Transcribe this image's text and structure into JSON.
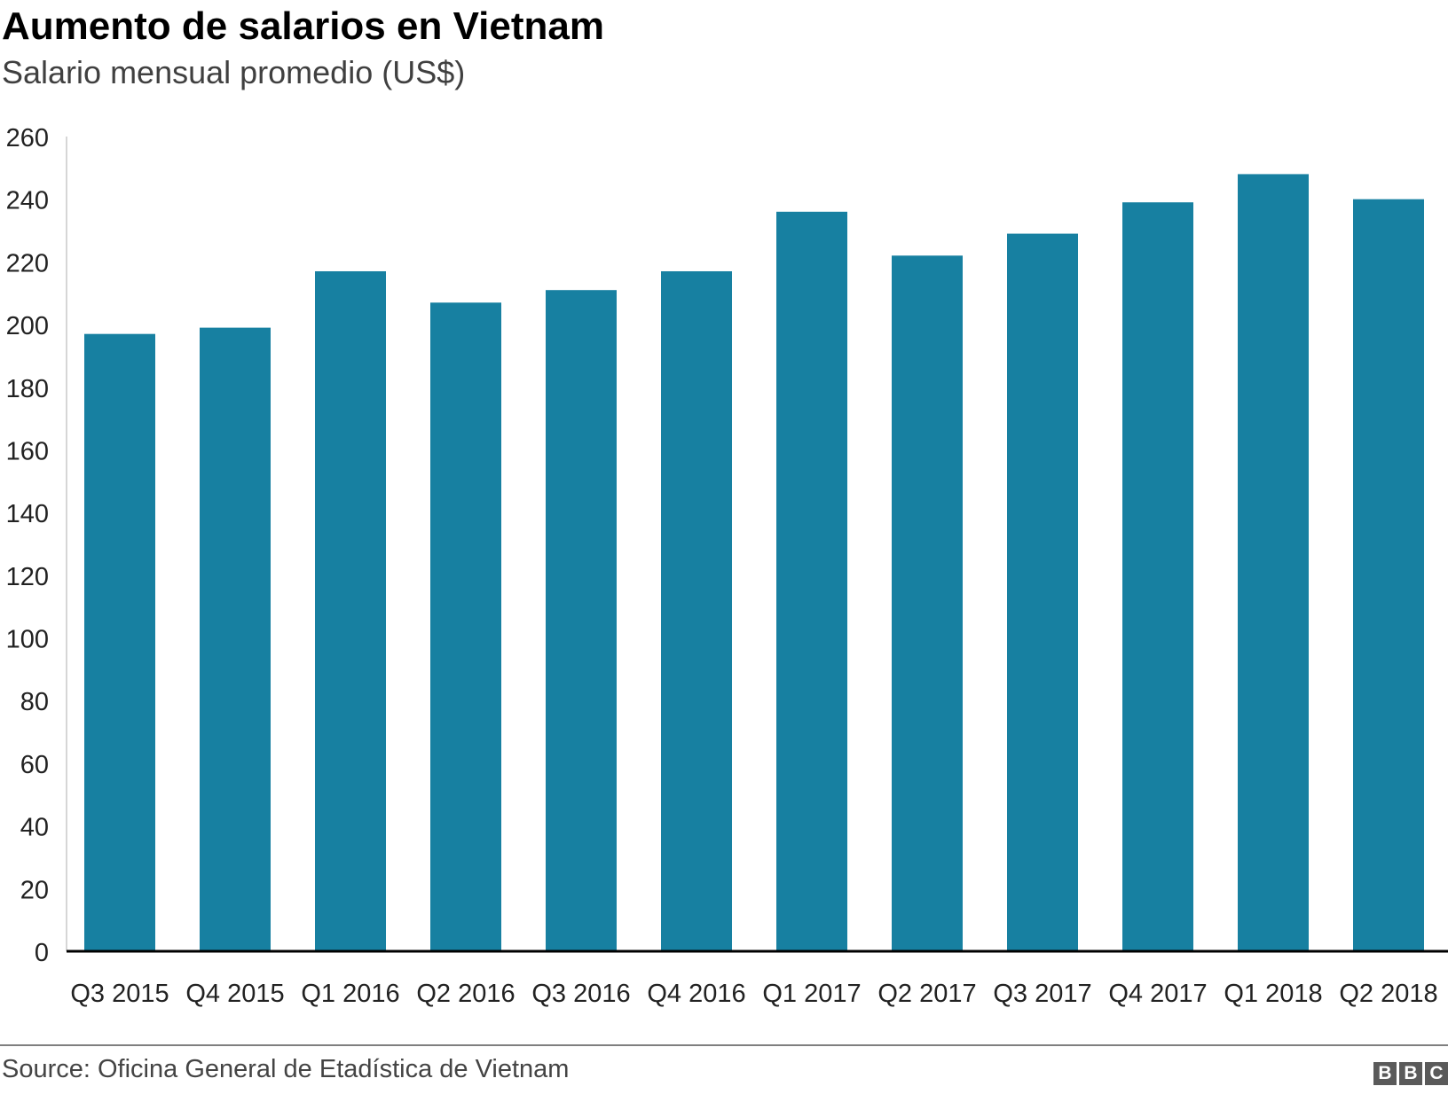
{
  "header": {
    "title": "Aumento de salarios en Vietnam",
    "subtitle": "Salario mensual promedio (US$)"
  },
  "footer": {
    "source": "Source: Oficina General de Etadística de Vietnam",
    "logo_letters": [
      "B",
      "B",
      "C"
    ]
  },
  "colors": {
    "bar": "#1780a1",
    "axis": "#000000",
    "text": "#222222"
  },
  "chart_data": {
    "type": "bar",
    "title": "Aumento de salarios en Vietnam",
    "subtitle": "Salario mensual promedio (US$)",
    "xlabel": "",
    "ylabel": "",
    "categories": [
      "Q3 2015",
      "Q4 2015",
      "Q1 2016",
      "Q2 2016",
      "Q3 2016",
      "Q4 2016",
      "Q1 2017",
      "Q2 2017",
      "Q3 2017",
      "Q4 2017",
      "Q1 2018",
      "Q2 2018"
    ],
    "values": [
      197,
      199,
      217,
      207,
      211,
      217,
      236,
      222,
      229,
      239,
      248,
      240
    ],
    "ylim": [
      0,
      260
    ],
    "yticks": [
      0,
      20,
      40,
      60,
      80,
      100,
      120,
      140,
      160,
      180,
      200,
      220,
      240,
      260
    ],
    "grid": false,
    "legend": "none"
  }
}
